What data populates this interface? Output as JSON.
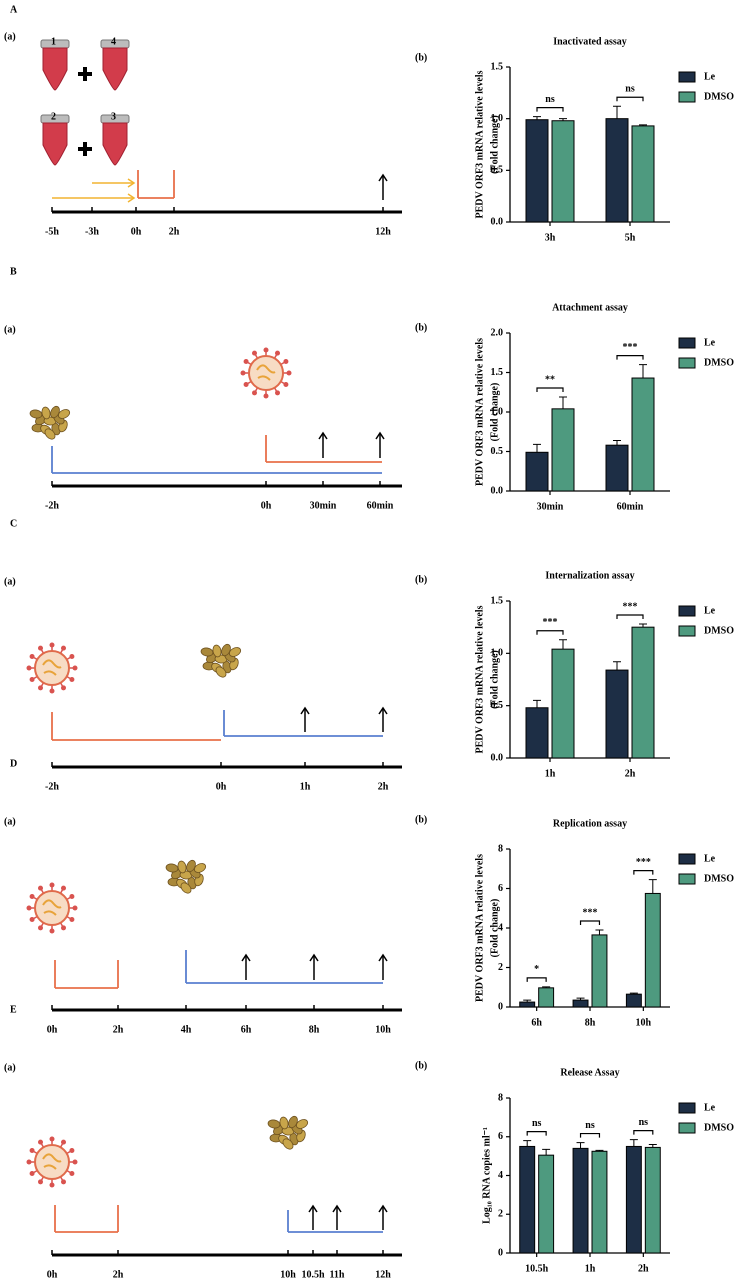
{
  "panels": [
    {
      "letter": "A",
      "left_label": "(a)",
      "right_label": "(b)",
      "timeline": [
        "-5h",
        "-3h",
        "0h",
        "2h",
        "12h"
      ],
      "tubes": [
        "1",
        "4",
        "2",
        "3"
      ]
    },
    {
      "letter": "B",
      "left_label": "(a)",
      "right_label": "(b)",
      "timeline": [
        "-2h",
        "0h",
        "30min",
        "60min"
      ]
    },
    {
      "letter": "C",
      "left_label": "(a)",
      "right_label": "(b)",
      "timeline": [
        "-2h",
        "0h",
        "1h",
        "2h"
      ]
    },
    {
      "letter": "D",
      "left_label": "(a)",
      "right_label": "(b)",
      "timeline": [
        "0h",
        "2h",
        "4h",
        "6h",
        "8h",
        "10h"
      ]
    },
    {
      "letter": "E",
      "left_label": "(a)",
      "right_label": "(b)",
      "timeline": [
        "0h",
        "2h",
        "10h",
        "10.5h",
        "11h",
        "12h"
      ]
    }
  ],
  "chart_data": [
    {
      "type": "bar",
      "title": "Inactivated assay",
      "ylabel": [
        "PEDV ORF3 mRNA relative levels",
        "(Fold change)"
      ],
      "categories": [
        "3h",
        "5h"
      ],
      "series": [
        {
          "name": "Le",
          "color": "#1d2e45",
          "values": [
            0.99,
            1.0
          ],
          "errors": [
            0.03,
            0.12
          ]
        },
        {
          "name": "DMSO",
          "color": "#4e9a7f",
          "values": [
            0.98,
            0.93
          ],
          "errors": [
            0.02,
            0.01
          ]
        }
      ],
      "significance": [
        "ns",
        "ns"
      ],
      "ylim": [
        0,
        1.5
      ],
      "yticks": [
        {
          "value": 0,
          "label": "0.0"
        },
        {
          "value": 0.5,
          "label": "0.5"
        },
        {
          "value": 1,
          "label": "1.0"
        },
        {
          "value": 1.5,
          "label": "1.5"
        }
      ]
    },
    {
      "type": "bar",
      "title": "Attachment assay",
      "ylabel": [
        "PEDV ORF3 mRNA relative levels",
        "(Fold change)"
      ],
      "categories": [
        "30min",
        "60min"
      ],
      "series": [
        {
          "name": "Le",
          "color": "#1d2e45",
          "values": [
            0.49,
            0.58
          ],
          "errors": [
            0.1,
            0.06
          ]
        },
        {
          "name": "DMSO",
          "color": "#4e9a7f",
          "values": [
            1.04,
            1.43
          ],
          "errors": [
            0.15,
            0.17
          ]
        }
      ],
      "significance": [
        "**",
        "***"
      ],
      "ylim": [
        0,
        2
      ],
      "yticks": [
        {
          "value": 0,
          "label": "0.0"
        },
        {
          "value": 0.5,
          "label": "0.5"
        },
        {
          "value": 1,
          "label": "1.0"
        },
        {
          "value": 1.5,
          "label": "1.5"
        },
        {
          "value": 2,
          "label": "2.0"
        }
      ]
    },
    {
      "type": "bar",
      "title": "Internalization assay",
      "ylabel": [
        "PEDV ORF3 mRNA relative levels",
        "(Fold change)"
      ],
      "categories": [
        "1h",
        "2h"
      ],
      "series": [
        {
          "name": "Le",
          "color": "#1d2e45",
          "values": [
            0.48,
            0.84
          ],
          "errors": [
            0.07,
            0.08
          ]
        },
        {
          "name": "DMSO",
          "color": "#4e9a7f",
          "values": [
            1.04,
            1.25
          ],
          "errors": [
            0.09,
            0.03
          ]
        }
      ],
      "significance": [
        "***",
        "***"
      ],
      "ylim": [
        0,
        1.5
      ],
      "yticks": [
        {
          "value": 0,
          "label": "0.0"
        },
        {
          "value": 0.5,
          "label": "0.5"
        },
        {
          "value": 1,
          "label": "1.0"
        },
        {
          "value": 1.5,
          "label": "1.5"
        }
      ]
    },
    {
      "type": "bar",
      "title": "Replication assay",
      "ylabel": [
        "PEDV ORF3 mRNA relative levels",
        "(Fold change)"
      ],
      "categories": [
        "6h",
        "8h",
        "10h"
      ],
      "series": [
        {
          "name": "Le",
          "color": "#1d2e45",
          "values": [
            0.25,
            0.35,
            0.65
          ],
          "errors": [
            0.1,
            0.1,
            0.05
          ]
        },
        {
          "name": "DMSO",
          "color": "#4e9a7f",
          "values": [
            0.97,
            3.65,
            5.75
          ],
          "errors": [
            0.05,
            0.25,
            0.7
          ]
        }
      ],
      "significance": [
        "*",
        "***",
        "***"
      ],
      "ylim": [
        0,
        8
      ],
      "yticks": [
        0,
        2,
        4,
        6,
        8
      ]
    },
    {
      "type": "bar",
      "title": "Release Assay",
      "ylabel": [
        "Log₁₀ RNA copies ml⁻¹"
      ],
      "categories": [
        "10.5h",
        "1h",
        "2h"
      ],
      "series": [
        {
          "name": "Le",
          "color": "#1d2e45",
          "values": [
            5.5,
            5.4,
            5.5
          ],
          "errors": [
            0.3,
            0.3,
            0.35
          ]
        },
        {
          "name": "DMSO",
          "color": "#4e9a7f",
          "values": [
            5.05,
            5.25,
            5.45
          ],
          "errors": [
            0.3,
            0.05,
            0.15
          ]
        }
      ],
      "significance": [
        "ns",
        "ns",
        "ns"
      ],
      "ylim": [
        0,
        8
      ],
      "yticks": [
        0,
        2,
        4,
        6,
        8
      ]
    }
  ]
}
